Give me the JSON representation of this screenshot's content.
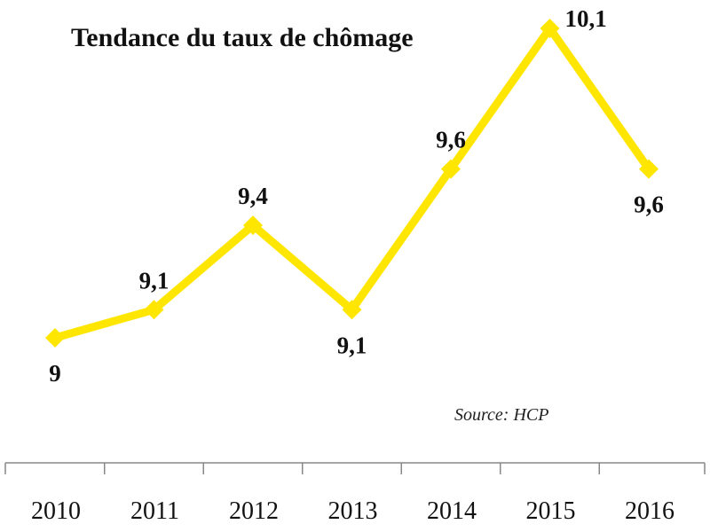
{
  "title": "Tendance du taux de chômage",
  "source": "Source: HCP",
  "chart_data": {
    "type": "line",
    "title": "Tendance du taux de chômage",
    "xlabel": "",
    "ylabel": "",
    "x": [
      "2010",
      "2011",
      "2012",
      "2013",
      "2014",
      "2015",
      "2016"
    ],
    "series": [
      {
        "values": [
          9,
          9.1,
          9.4,
          9.1,
          9.6,
          10.1,
          9.6
        ],
        "labels": [
          "9",
          "9,1",
          "9,4",
          "9,1",
          "9,6",
          "10,1",
          "9,6"
        ],
        "label_position": [
          "below",
          "above",
          "above",
          "below",
          "above",
          "right",
          "below"
        ],
        "color": "#ffe600"
      }
    ],
    "ylim": [
      8.5,
      10.25
    ],
    "grid": false,
    "legend": "none"
  }
}
